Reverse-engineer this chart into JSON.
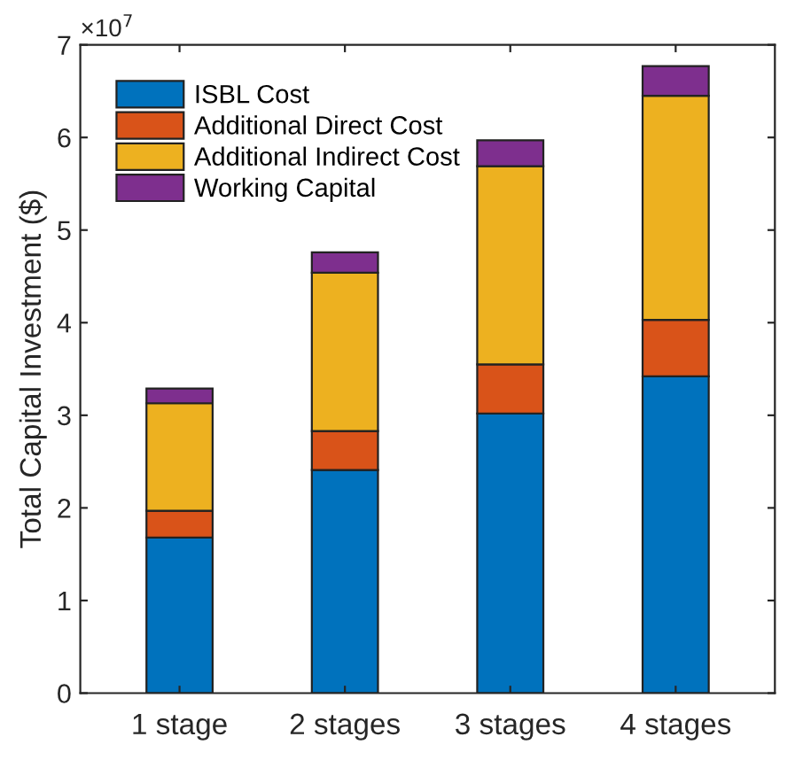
{
  "chart_data": {
    "type": "bar",
    "stacked": true,
    "ylabel": "Total Capital Investment ($)",
    "categories": [
      "1 stage",
      "2 stages",
      "3 stages",
      "4 stages"
    ],
    "series": [
      {
        "name": "ISBL Cost",
        "color": "#0072bd",
        "values": [
          1.68,
          2.41,
          3.02,
          3.42
        ]
      },
      {
        "name": "Additional Direct Cost",
        "color": "#d95319",
        "values": [
          0.29,
          0.42,
          0.53,
          0.61
        ]
      },
      {
        "name": "Additional Indirect Cost",
        "color": "#edb120",
        "values": [
          1.16,
          1.71,
          2.14,
          2.42
        ]
      },
      {
        "name": "Working Capital",
        "color": "#7e2f8e",
        "values": [
          0.16,
          0.22,
          0.28,
          0.32
        ]
      }
    ],
    "ylim": [
      0,
      7
    ],
    "yticks": [
      0,
      1,
      2,
      3,
      4,
      5,
      6,
      7
    ],
    "annotations": [
      "×10$^{7}$"
    ],
    "legend": "top left",
    "grid": false
  }
}
